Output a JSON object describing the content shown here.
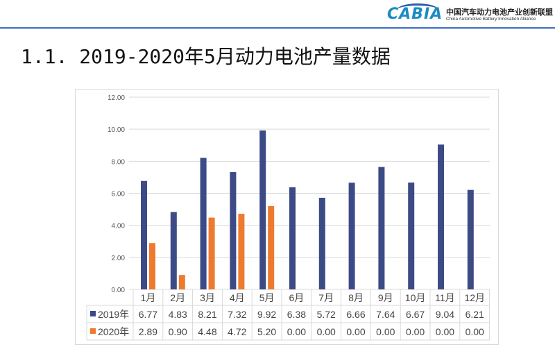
{
  "header": {
    "logo_text": "CABIA",
    "org_name_cn": "中国汽车动力电池产业创新联盟",
    "org_name_en": "China Automotive Battery Innovation Alliance"
  },
  "title": "1.1. 2019-2020年5月动力电池产量数据",
  "chart_data": {
    "type": "bar",
    "title": "",
    "xlabel": "",
    "ylabel": "",
    "categories": [
      "1月",
      "2月",
      "3月",
      "4月",
      "5月",
      "6月",
      "7月",
      "8月",
      "9月",
      "10月",
      "11月",
      "12月"
    ],
    "ylim": [
      0,
      12
    ],
    "yticks": [
      "0.00",
      "2.00",
      "4.00",
      "6.00",
      "8.00",
      "10.00",
      "12.00"
    ],
    "grid": true,
    "legend": "data-table",
    "series": [
      {
        "name": "2019年",
        "color": "#3c4a86",
        "values": [
          6.77,
          4.83,
          8.21,
          7.32,
          9.92,
          6.38,
          5.72,
          6.66,
          7.64,
          6.67,
          9.04,
          6.21
        ],
        "labels": [
          "6.77",
          "4.83",
          "8.21",
          "7.32",
          "9.92",
          "6.38",
          "5.72",
          "6.66",
          "7.64",
          "6.67",
          "9.04",
          "6.21"
        ]
      },
      {
        "name": "2020年",
        "color": "#ee7a2f",
        "values": [
          2.89,
          0.9,
          4.48,
          4.72,
          5.2,
          0,
          0,
          0,
          0,
          0,
          0,
          0
        ],
        "labels": [
          "2.89",
          "0.90",
          "4.48",
          "4.72",
          "5.20",
          "0.00",
          "0.00",
          "0.00",
          "0.00",
          "0.00",
          "0.00",
          "0.00"
        ]
      }
    ]
  }
}
